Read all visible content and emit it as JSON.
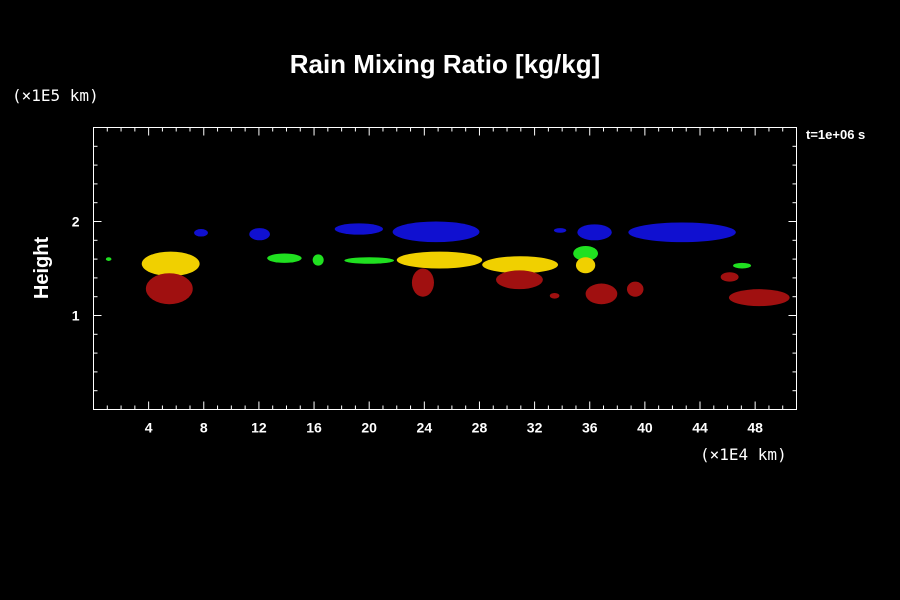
{
  "chart_data": {
    "type": "heatmap",
    "title": "Rain Mixing Ratio [kg/kg]",
    "xlabel": "",
    "ylabel": "Height",
    "x_unit_label": "(×1E4 km)",
    "y_unit_label": "(×1E5 km)",
    "time_label": "t=1e+06 s",
    "xlim": [
      0,
      51
    ],
    "ylim": [
      0,
      3
    ],
    "x_ticks": [
      4,
      8,
      12,
      16,
      20,
      24,
      28,
      32,
      36,
      40,
      44,
      48
    ],
    "y_ticks": [
      1,
      2
    ],
    "colors": {
      "blue": "#1010d0",
      "green": "#20e020",
      "yellow": "#f0d000",
      "dark_red": "#a01010"
    },
    "regions": [
      {
        "level": "yellow",
        "x": [
          3.5,
          7.7
        ],
        "y": [
          1.42,
          1.68
        ]
      },
      {
        "level": "dark_red",
        "x": [
          3.8,
          7.2
        ],
        "y": [
          1.12,
          1.45
        ]
      },
      {
        "level": "blue",
        "x": [
          7.3,
          8.3
        ],
        "y": [
          1.84,
          1.92
        ]
      },
      {
        "level": "blue",
        "x": [
          11.3,
          12.8
        ],
        "y": [
          1.8,
          1.93
        ]
      },
      {
        "level": "green",
        "x": [
          12.6,
          15.1
        ],
        "y": [
          1.56,
          1.66
        ]
      },
      {
        "level": "green",
        "x": [
          15.9,
          16.7
        ],
        "y": [
          1.53,
          1.65
        ]
      },
      {
        "level": "blue",
        "x": [
          17.5,
          21.0
        ],
        "y": [
          1.86,
          1.98
        ]
      },
      {
        "level": "green",
        "x": [
          18.2,
          21.8
        ],
        "y": [
          1.55,
          1.62
        ]
      },
      {
        "level": "blue",
        "x": [
          21.7,
          28.0
        ],
        "y": [
          1.78,
          2.0
        ]
      },
      {
        "level": "yellow",
        "x": [
          22.0,
          28.2
        ],
        "y": [
          1.5,
          1.68
        ]
      },
      {
        "level": "dark_red",
        "x": [
          23.1,
          24.7
        ],
        "y": [
          1.2,
          1.5
        ]
      },
      {
        "level": "yellow",
        "x": [
          28.2,
          33.7
        ],
        "y": [
          1.45,
          1.63
        ]
      },
      {
        "level": "dark_red",
        "x": [
          29.2,
          32.6
        ],
        "y": [
          1.28,
          1.48
        ]
      },
      {
        "level": "dark_red",
        "x": [
          33.1,
          33.8
        ],
        "y": [
          1.18,
          1.24
        ]
      },
      {
        "level": "blue",
        "x": [
          33.4,
          34.3
        ],
        "y": [
          1.88,
          1.93
        ]
      },
      {
        "level": "green",
        "x": [
          34.8,
          36.6
        ],
        "y": [
          1.58,
          1.74
        ]
      },
      {
        "level": "yellow",
        "x": [
          35.0,
          36.4
        ],
        "y": [
          1.45,
          1.62
        ]
      },
      {
        "level": "blue",
        "x": [
          35.1,
          37.6
        ],
        "y": [
          1.8,
          1.97
        ]
      },
      {
        "level": "dark_red",
        "x": [
          35.7,
          38.0
        ],
        "y": [
          1.12,
          1.34
        ]
      },
      {
        "level": "dark_red",
        "x": [
          38.7,
          39.9
        ],
        "y": [
          1.2,
          1.36
        ]
      },
      {
        "level": "blue",
        "x": [
          38.8,
          46.6
        ],
        "y": [
          1.78,
          1.99
        ]
      },
      {
        "level": "dark_red",
        "x": [
          45.5,
          46.8
        ],
        "y": [
          1.36,
          1.46
        ]
      },
      {
        "level": "green",
        "x": [
          46.4,
          47.7
        ],
        "y": [
          1.5,
          1.56
        ]
      },
      {
        "level": "dark_red",
        "x": [
          46.1,
          50.5
        ],
        "y": [
          1.1,
          1.28
        ]
      },
      {
        "level": "green",
        "x": [
          0.9,
          1.3
        ],
        "y": [
          1.58,
          1.62
        ]
      }
    ]
  }
}
